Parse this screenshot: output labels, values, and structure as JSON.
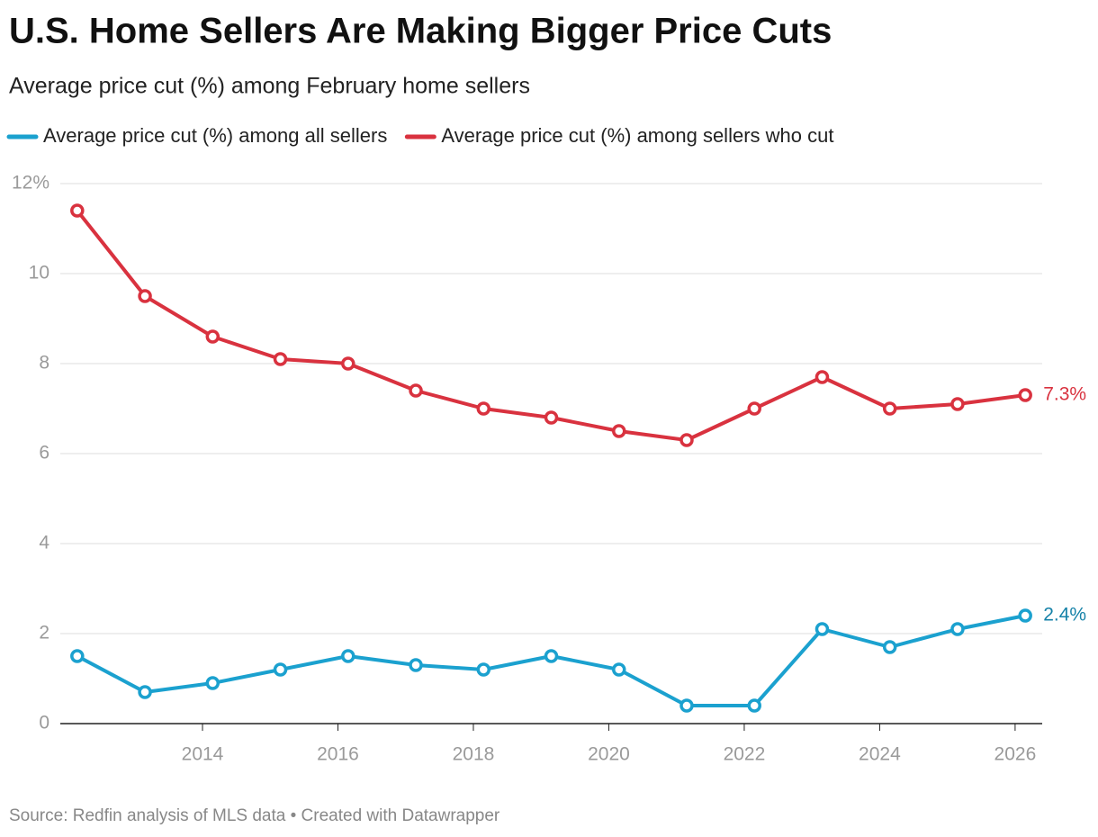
{
  "chart_data": {
    "type": "line",
    "title": "U.S. Home Sellers Are Making Bigger Price Cuts",
    "subtitle": "Average price cut (%) among February home sellers",
    "source": "Source: Redfin analysis of MLS data • Created with Datawrapper",
    "x": [
      2012.15,
      2013.15,
      2014.15,
      2015.15,
      2016.15,
      2017.15,
      2018.15,
      2019.15,
      2020.15,
      2021.15,
      2022.15,
      2023.15,
      2024.15,
      2025.15,
      2026.15
    ],
    "xlim": [
      2011.9,
      2026.4
    ],
    "xticks": [
      2014,
      2016,
      2018,
      2020,
      2022,
      2024,
      2026
    ],
    "ylim": [
      0,
      12
    ],
    "yticks": [
      0,
      2,
      4,
      6,
      8,
      10,
      {
        "value": 12,
        "label": "12%"
      }
    ],
    "grid": true,
    "series": [
      {
        "name": "Average price cut (%) among all sellers",
        "color": "#1ba1cf",
        "label_color": "#1682a8",
        "values": [
          1.5,
          0.7,
          0.9,
          1.2,
          1.5,
          1.3,
          1.2,
          1.5,
          1.2,
          0.4,
          0.4,
          2.1,
          1.7,
          2.1,
          2.4
        ],
        "value_labels": [
          null,
          null,
          null,
          null,
          null,
          null,
          null,
          null,
          null,
          null,
          null,
          null,
          null,
          null,
          "2.4%"
        ]
      },
      {
        "name": "Average price cut (%) among sellers who cut",
        "color": "#d9323f",
        "label_color": "#d9323f",
        "values": [
          11.4,
          9.5,
          8.6,
          8.1,
          8.0,
          7.4,
          7.0,
          6.8,
          6.5,
          6.3,
          7.0,
          7.7,
          7.0,
          7.1,
          7.3
        ],
        "value_labels": [
          null,
          null,
          null,
          null,
          null,
          null,
          null,
          null,
          null,
          null,
          null,
          null,
          null,
          null,
          "7.3%"
        ]
      }
    ]
  }
}
